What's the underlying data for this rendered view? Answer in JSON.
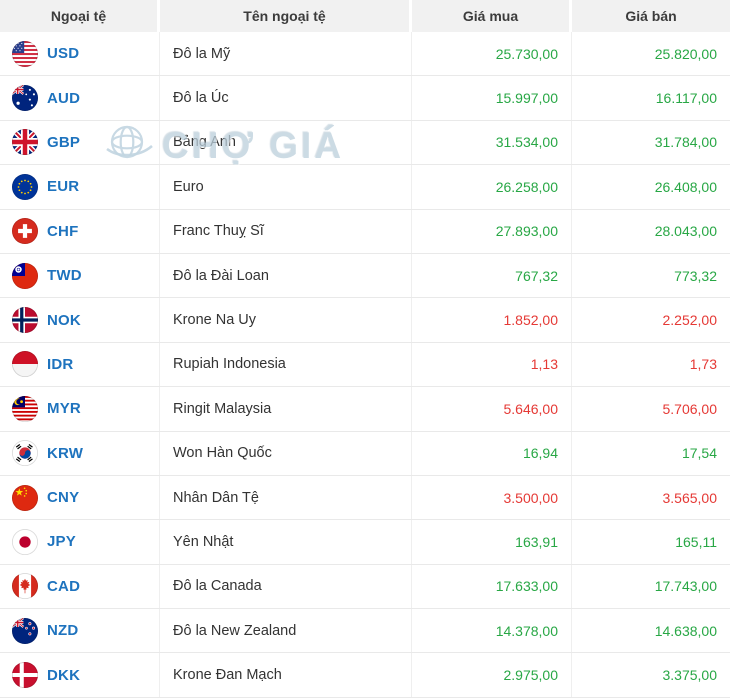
{
  "colors": {
    "code_blue": "#1e73be",
    "price_up_green": "#28a745",
    "price_down_red": "#e53935",
    "header_bg": "#f1f1f1"
  },
  "header": {
    "columns": [
      "Ngoại tệ",
      "Tên ngoại tệ",
      "Giá mua",
      "Giá bán"
    ]
  },
  "watermark": {
    "text": "CHỢ GIÁ",
    "icon": "globe-logo-icon"
  },
  "rows": [
    {
      "code": "USD",
      "flag_icon": "usa-flag-icon",
      "name": "Đô la Mỹ",
      "buy": "25.730,00",
      "sell": "25.820,00",
      "trend": "up"
    },
    {
      "code": "AUD",
      "flag_icon": "australia-flag-icon",
      "name": "Đô la Úc",
      "buy": "15.997,00",
      "sell": "16.117,00",
      "trend": "up"
    },
    {
      "code": "GBP",
      "flag_icon": "uk-flag-icon",
      "name": "Bảng Anh",
      "buy": "31.534,00",
      "sell": "31.784,00",
      "trend": "up"
    },
    {
      "code": "EUR",
      "flag_icon": "eu-flag-icon",
      "name": "Euro",
      "buy": "26.258,00",
      "sell": "26.408,00",
      "trend": "up"
    },
    {
      "code": "CHF",
      "flag_icon": "switzerland-flag-icon",
      "name": "Franc Thuỵ Sĩ",
      "buy": "27.893,00",
      "sell": "28.043,00",
      "trend": "up"
    },
    {
      "code": "TWD",
      "flag_icon": "taiwan-flag-icon",
      "name": "Đô la Đài Loan",
      "buy": "767,32",
      "sell": "773,32",
      "trend": "up"
    },
    {
      "code": "NOK",
      "flag_icon": "norway-flag-icon",
      "name": "Krone Na Uy",
      "buy": "1.852,00",
      "sell": "2.252,00",
      "trend": "down"
    },
    {
      "code": "IDR",
      "flag_icon": "indonesia-flag-icon",
      "name": "Rupiah Indonesia",
      "buy": "1,13",
      "sell": "1,73",
      "trend": "down"
    },
    {
      "code": "MYR",
      "flag_icon": "malaysia-flag-icon",
      "name": "Ringit Malaysia",
      "buy": "5.646,00",
      "sell": "5.706,00",
      "trend": "down"
    },
    {
      "code": "KRW",
      "flag_icon": "south-korea-flag-icon",
      "name": "Won Hàn Quốc",
      "buy": "16,94",
      "sell": "17,54",
      "trend": "up"
    },
    {
      "code": "CNY",
      "flag_icon": "china-flag-icon",
      "name": "Nhân Dân Tệ",
      "buy": "3.500,00",
      "sell": "3.565,00",
      "trend": "down"
    },
    {
      "code": "JPY",
      "flag_icon": "japan-flag-icon",
      "name": "Yên Nhật",
      "buy": "163,91",
      "sell": "165,11",
      "trend": "up"
    },
    {
      "code": "CAD",
      "flag_icon": "canada-flag-icon",
      "name": "Đô la Canada",
      "buy": "17.633,00",
      "sell": "17.743,00",
      "trend": "up"
    },
    {
      "code": "NZD",
      "flag_icon": "new-zealand-flag-icon",
      "name": "Đô la New Zealand",
      "buy": "14.378,00",
      "sell": "14.638,00",
      "trend": "up"
    },
    {
      "code": "DKK",
      "flag_icon": "denmark-flag-icon",
      "name": "Krone Đan Mạch",
      "buy": "2.975,00",
      "sell": "3.375,00",
      "trend": "up"
    }
  ]
}
